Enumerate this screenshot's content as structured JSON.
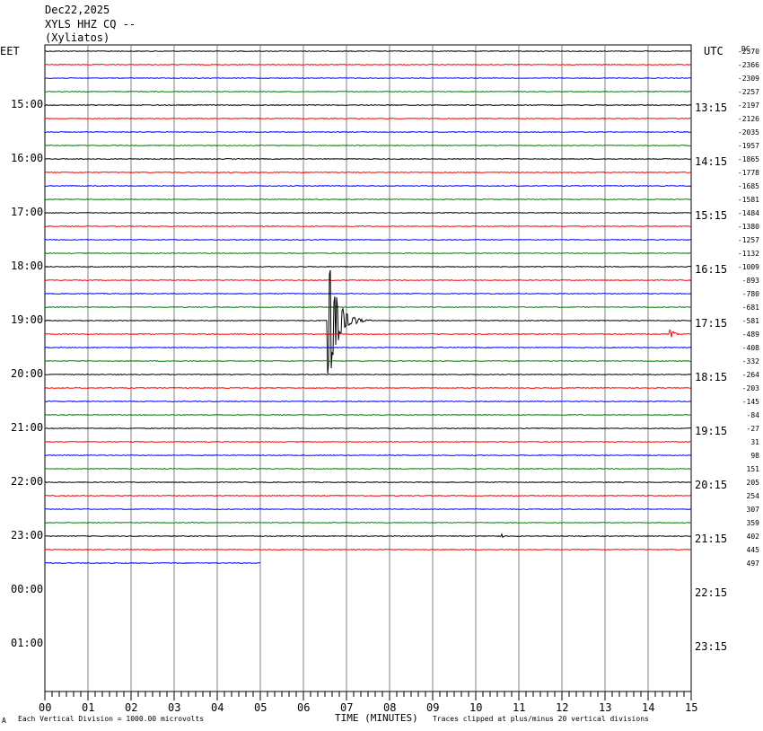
{
  "header": {
    "date": "Dec22,2025",
    "station": "XYLS HHZ CQ --",
    "site": "(Xyliatos)"
  },
  "left_timezone": "EET",
  "right_timezone": "UTC",
  "dc_heading": "DC",
  "footer": {
    "scale_note": "Each Vertical Division = 1000.00 microvolts",
    "clip_note": "Traces clipped at plus/minus 20 vertical divisions",
    "corner_mark": "A"
  },
  "chart_data": {
    "type": "line",
    "title": "",
    "xlabel": "TIME (MINUTES)",
    "ylabel": "",
    "xlim": [
      0,
      15
    ],
    "x_ticks": [
      "00",
      "01",
      "02",
      "03",
      "04",
      "05",
      "06",
      "07",
      "08",
      "09",
      "10",
      "11",
      "12",
      "13",
      "14",
      "15"
    ],
    "grid": true,
    "trace_colors": [
      "#000000",
      "#ff0000",
      "#0000ff",
      "#008000"
    ],
    "left_time_labels": [
      "15:00",
      "16:00",
      "17:00",
      "18:00",
      "19:00",
      "20:00",
      "21:00",
      "22:00",
      "23:00",
      "00:00",
      "01:00"
    ],
    "right_time_labels": [
      "13:15",
      "14:15",
      "15:15",
      "16:15",
      "17:15",
      "18:15",
      "19:15",
      "20:15",
      "21:15",
      "22:15",
      "23:15"
    ],
    "dc_offsets": [
      "-2370",
      "-2366",
      "-2309",
      "-2257",
      "-2197",
      "-2126",
      "-2035",
      "-1957",
      "-1865",
      "-1778",
      "-1685",
      "-1581",
      "-1484",
      "-1380",
      "-1257",
      "-1132",
      "-1009",
      "-893",
      "-780",
      "-681",
      "-581",
      "-489",
      "-408",
      "-332",
      "-264",
      "-203",
      "-145",
      "-84",
      "-27",
      "31",
      "98",
      "151",
      "205",
      "254",
      "307",
      "359",
      "402",
      "445",
      "497"
    ],
    "trace_rows": 39,
    "last_trace_end_minute": 5,
    "events": [
      {
        "name": "earthquake",
        "trace_index": 20,
        "start_minute": 6.55,
        "duration_minutes": 1.0,
        "max_amplitude_divisions": 12
      },
      {
        "name": "local-burst",
        "trace_index": 21,
        "start_minute": 14.5,
        "duration_minutes": 0.4,
        "max_amplitude_divisions": 1.2
      },
      {
        "name": "small-wiggle",
        "trace_index": 36,
        "start_minute": 10.6,
        "duration_minutes": 0.2,
        "max_amplitude_divisions": 0.3
      }
    ]
  }
}
